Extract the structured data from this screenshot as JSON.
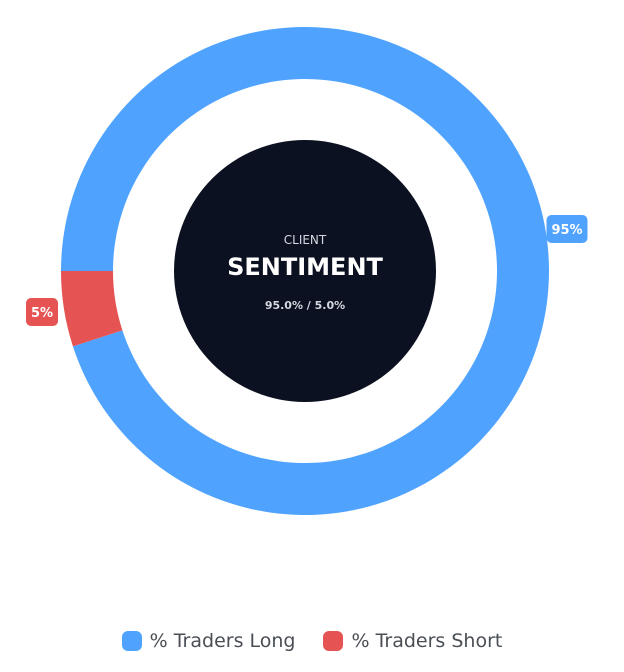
{
  "chart_data": {
    "type": "pie",
    "variant": "doughnut",
    "categories": [
      "% Traders Long",
      "% Traders Short"
    ],
    "values": [
      95,
      5
    ],
    "colors": [
      "#4fa3ff",
      "#e55353"
    ],
    "data_labels": [
      "95%",
      "5%"
    ],
    "center": {
      "kicker": "CLIENT",
      "title": "SENTIMENT",
      "subtitle": "95.0% / 5.0%",
      "background": "#0c1121"
    },
    "legend_position": "bottom"
  }
}
